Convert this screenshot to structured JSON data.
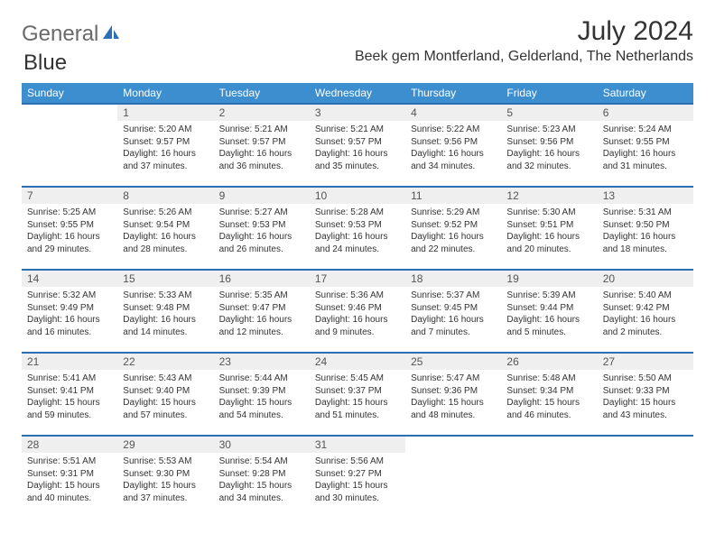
{
  "logo": {
    "text1": "General",
    "text2": "Blue"
  },
  "title": "July 2024",
  "location": "Beek gem Montferland, Gelderland, The Netherlands",
  "colors": {
    "header_bg": "#3d8ecf",
    "header_text": "#ffffff",
    "row_border": "#2d6fb5",
    "daynum_bg": "#efefef",
    "body_text": "#333333",
    "logo_gray": "#6a6a6a",
    "logo_blue": "#2d6fb5"
  },
  "dayHeaders": [
    "Sunday",
    "Monday",
    "Tuesday",
    "Wednesday",
    "Thursday",
    "Friday",
    "Saturday"
  ],
  "weeks": [
    [
      null,
      {
        "n": "1",
        "sr": "5:20 AM",
        "ss": "9:57 PM",
        "dl": "16 hours and 37 minutes."
      },
      {
        "n": "2",
        "sr": "5:21 AM",
        "ss": "9:57 PM",
        "dl": "16 hours and 36 minutes."
      },
      {
        "n": "3",
        "sr": "5:21 AM",
        "ss": "9:57 PM",
        "dl": "16 hours and 35 minutes."
      },
      {
        "n": "4",
        "sr": "5:22 AM",
        "ss": "9:56 PM",
        "dl": "16 hours and 34 minutes."
      },
      {
        "n": "5",
        "sr": "5:23 AM",
        "ss": "9:56 PM",
        "dl": "16 hours and 32 minutes."
      },
      {
        "n": "6",
        "sr": "5:24 AM",
        "ss": "9:55 PM",
        "dl": "16 hours and 31 minutes."
      }
    ],
    [
      {
        "n": "7",
        "sr": "5:25 AM",
        "ss": "9:55 PM",
        "dl": "16 hours and 29 minutes."
      },
      {
        "n": "8",
        "sr": "5:26 AM",
        "ss": "9:54 PM",
        "dl": "16 hours and 28 minutes."
      },
      {
        "n": "9",
        "sr": "5:27 AM",
        "ss": "9:53 PM",
        "dl": "16 hours and 26 minutes."
      },
      {
        "n": "10",
        "sr": "5:28 AM",
        "ss": "9:53 PM",
        "dl": "16 hours and 24 minutes."
      },
      {
        "n": "11",
        "sr": "5:29 AM",
        "ss": "9:52 PM",
        "dl": "16 hours and 22 minutes."
      },
      {
        "n": "12",
        "sr": "5:30 AM",
        "ss": "9:51 PM",
        "dl": "16 hours and 20 minutes."
      },
      {
        "n": "13",
        "sr": "5:31 AM",
        "ss": "9:50 PM",
        "dl": "16 hours and 18 minutes."
      }
    ],
    [
      {
        "n": "14",
        "sr": "5:32 AM",
        "ss": "9:49 PM",
        "dl": "16 hours and 16 minutes."
      },
      {
        "n": "15",
        "sr": "5:33 AM",
        "ss": "9:48 PM",
        "dl": "16 hours and 14 minutes."
      },
      {
        "n": "16",
        "sr": "5:35 AM",
        "ss": "9:47 PM",
        "dl": "16 hours and 12 minutes."
      },
      {
        "n": "17",
        "sr": "5:36 AM",
        "ss": "9:46 PM",
        "dl": "16 hours and 9 minutes."
      },
      {
        "n": "18",
        "sr": "5:37 AM",
        "ss": "9:45 PM",
        "dl": "16 hours and 7 minutes."
      },
      {
        "n": "19",
        "sr": "5:39 AM",
        "ss": "9:44 PM",
        "dl": "16 hours and 5 minutes."
      },
      {
        "n": "20",
        "sr": "5:40 AM",
        "ss": "9:42 PM",
        "dl": "16 hours and 2 minutes."
      }
    ],
    [
      {
        "n": "21",
        "sr": "5:41 AM",
        "ss": "9:41 PM",
        "dl": "15 hours and 59 minutes."
      },
      {
        "n": "22",
        "sr": "5:43 AM",
        "ss": "9:40 PM",
        "dl": "15 hours and 57 minutes."
      },
      {
        "n": "23",
        "sr": "5:44 AM",
        "ss": "9:39 PM",
        "dl": "15 hours and 54 minutes."
      },
      {
        "n": "24",
        "sr": "5:45 AM",
        "ss": "9:37 PM",
        "dl": "15 hours and 51 minutes."
      },
      {
        "n": "25",
        "sr": "5:47 AM",
        "ss": "9:36 PM",
        "dl": "15 hours and 48 minutes."
      },
      {
        "n": "26",
        "sr": "5:48 AM",
        "ss": "9:34 PM",
        "dl": "15 hours and 46 minutes."
      },
      {
        "n": "27",
        "sr": "5:50 AM",
        "ss": "9:33 PM",
        "dl": "15 hours and 43 minutes."
      }
    ],
    [
      {
        "n": "28",
        "sr": "5:51 AM",
        "ss": "9:31 PM",
        "dl": "15 hours and 40 minutes."
      },
      {
        "n": "29",
        "sr": "5:53 AM",
        "ss": "9:30 PM",
        "dl": "15 hours and 37 minutes."
      },
      {
        "n": "30",
        "sr": "5:54 AM",
        "ss": "9:28 PM",
        "dl": "15 hours and 34 minutes."
      },
      {
        "n": "31",
        "sr": "5:56 AM",
        "ss": "9:27 PM",
        "dl": "15 hours and 30 minutes."
      },
      null,
      null,
      null
    ]
  ],
  "labels": {
    "sunrise": "Sunrise: ",
    "sunset": "Sunset: ",
    "daylight": "Daylight: "
  }
}
